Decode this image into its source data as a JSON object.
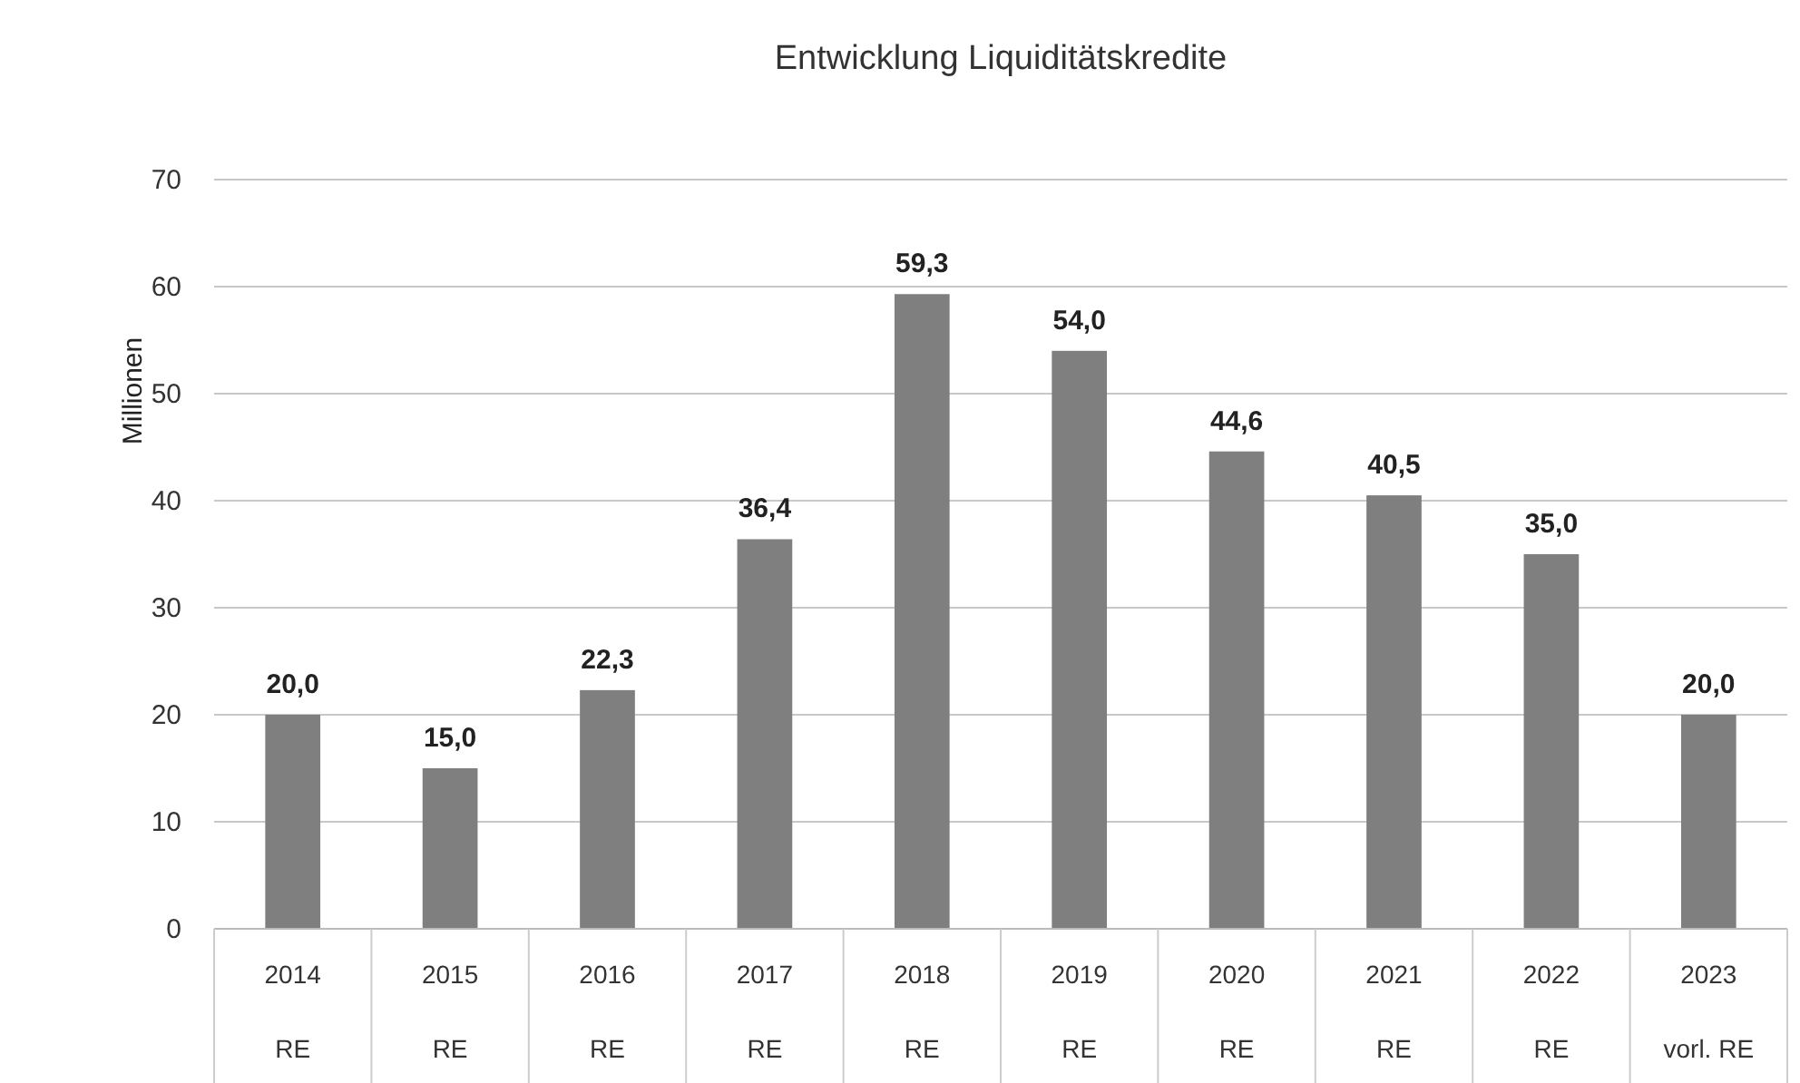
{
  "chart_data": {
    "type": "bar",
    "title": "Entwicklung Liquiditätskredite",
    "ylabel": "Millionen",
    "categories": [
      "2014\nRE",
      "2015\nRE",
      "2016\nRE",
      "2017\nRE",
      "2018\nRE",
      "2019\nRE",
      "2020\nRE",
      "2021\nRE",
      "2022\nRE",
      "2023\nvorl. RE"
    ],
    "values": [
      20.0,
      15.0,
      22.3,
      36.4,
      59.3,
      54.0,
      44.6,
      40.5,
      35.0,
      20.0
    ],
    "value_labels": [
      "20,0",
      "15,0",
      "22,3",
      "36,4",
      "59,3",
      "54,0",
      "44,6",
      "40,5",
      "35,0",
      "20,0"
    ],
    "color": "#7f7f7f",
    "ylim": [
      0,
      70
    ],
    "yticks": [
      0,
      10,
      20,
      30,
      40,
      50,
      60,
      70
    ],
    "grid": "y"
  }
}
